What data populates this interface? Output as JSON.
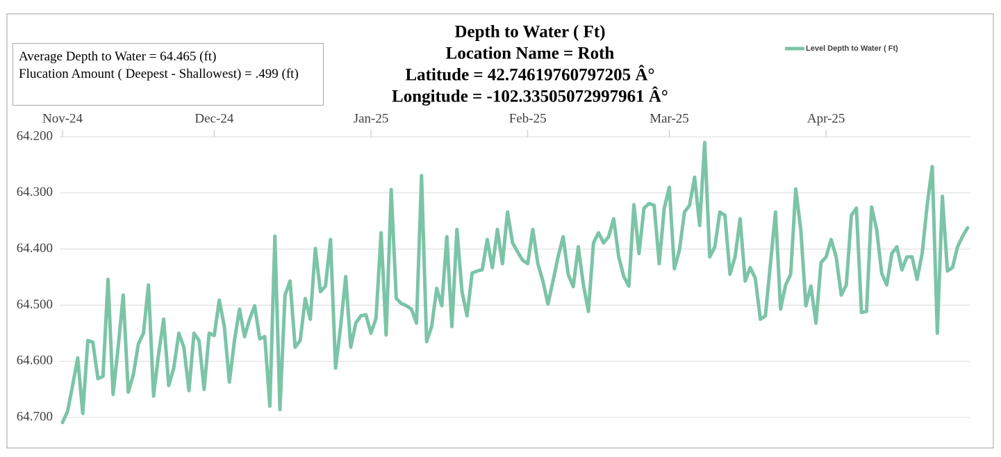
{
  "chart_data": {
    "type": "line",
    "title": [
      "Depth to Water ( Ft)",
      "Location Name = Roth",
      "Latitude = 42.74619760797205 Â°",
      "Longitude = -102.33505072997961 Â°"
    ],
    "annotations": [
      "Average Depth to Water = 64.465 (ft)",
      "Flucation Amount ( Deepest - Shallowest) = .499 (ft)"
    ],
    "categories": [
      "Nov-24",
      null,
      null,
      null,
      null,
      null,
      null,
      null,
      null,
      null,
      null,
      null,
      null,
      null,
      null,
      null,
      null,
      null,
      null,
      null,
      null,
      null,
      null,
      null,
      null,
      null,
      null,
      null,
      null,
      null,
      "Dec-24",
      null,
      null,
      null,
      null,
      null,
      null,
      null,
      null,
      null,
      null,
      null,
      null,
      null,
      null,
      null,
      null,
      null,
      null,
      null,
      null,
      null,
      null,
      null,
      null,
      null,
      null,
      null,
      null,
      null,
      null,
      "Jan-25",
      null,
      null,
      null,
      null,
      null,
      null,
      null,
      null,
      null,
      null,
      null,
      null,
      null,
      null,
      null,
      null,
      null,
      null,
      null,
      null,
      null,
      null,
      null,
      null,
      null,
      null,
      null,
      null,
      null,
      null,
      "Feb-25",
      null,
      null,
      null,
      null,
      null,
      null,
      null,
      null,
      null,
      null,
      null,
      null,
      null,
      null,
      null,
      null,
      null,
      null,
      null,
      null,
      null,
      null,
      null,
      null,
      null,
      null,
      null,
      "Mar-25",
      null,
      null,
      null,
      null,
      null,
      null,
      null,
      null,
      null,
      null,
      null,
      null,
      null,
      null,
      null,
      null,
      null,
      null,
      null,
      null,
      null,
      null,
      null,
      null,
      null,
      null,
      null,
      null,
      null,
      null,
      "Apr-25",
      null,
      null,
      null,
      null,
      null,
      null,
      null,
      null,
      null,
      null,
      null,
      null,
      null,
      null,
      null,
      null,
      null,
      null,
      null,
      null,
      null,
      null,
      null,
      null,
      null,
      null,
      null,
      null
    ],
    "series": [
      {
        "name": "Level Depth to Water ( Ft)",
        "color": "#7cc4a7",
        "values": [
          64.709,
          64.689,
          64.643,
          64.594,
          64.693,
          64.563,
          64.566,
          64.631,
          64.627,
          64.454,
          64.659,
          64.575,
          64.482,
          64.655,
          64.624,
          64.569,
          64.55,
          64.464,
          64.662,
          64.587,
          64.525,
          64.643,
          64.612,
          64.55,
          64.575,
          64.652,
          64.55,
          64.563,
          64.65,
          64.55,
          64.554,
          64.491,
          64.538,
          64.637,
          64.563,
          64.507,
          64.556,
          64.525,
          64.501,
          64.56,
          64.556,
          64.68,
          64.377,
          64.686,
          64.482,
          64.457,
          64.575,
          64.563,
          64.488,
          64.525,
          64.399,
          64.476,
          64.466,
          64.383,
          64.612,
          64.538,
          64.449,
          64.575,
          64.532,
          64.519,
          64.517,
          64.55,
          64.523,
          64.371,
          64.553,
          64.294,
          64.488,
          64.497,
          64.501,
          64.507,
          64.532,
          64.269,
          64.565,
          64.538,
          64.47,
          64.501,
          64.378,
          64.538,
          64.365,
          64.476,
          64.519,
          64.443,
          64.439,
          64.437,
          64.383,
          64.433,
          64.365,
          64.426,
          64.334,
          64.389,
          64.405,
          64.42,
          64.426,
          64.365,
          64.426,
          64.457,
          64.498,
          64.457,
          64.414,
          64.378,
          64.445,
          64.467,
          64.396,
          64.463,
          64.511,
          64.389,
          64.371,
          64.389,
          64.378,
          64.346,
          64.414,
          64.449,
          64.466,
          64.321,
          64.408,
          64.327,
          64.319,
          64.322,
          64.426,
          64.327,
          64.29,
          64.435,
          64.402,
          64.334,
          64.322,
          64.272,
          64.358,
          64.21,
          64.414,
          64.396,
          64.334,
          64.34,
          64.445,
          64.414,
          64.346,
          64.457,
          64.433,
          64.452,
          64.525,
          64.519,
          64.426,
          64.334,
          64.507,
          64.464,
          64.445,
          64.293,
          64.365,
          64.501,
          64.466,
          64.532,
          64.424,
          64.414,
          64.383,
          64.414,
          64.482,
          64.464,
          64.34,
          64.327,
          64.513,
          64.511,
          64.325,
          64.365,
          64.443,
          64.464,
          64.408,
          64.396,
          64.437,
          64.414,
          64.414,
          64.454,
          64.408,
          64.321,
          64.253,
          64.55,
          64.306,
          64.439,
          64.433,
          64.396,
          64.377,
          64.362
        ]
      }
    ],
    "ylim": [
      64.2,
      64.7
    ],
    "yticks": [
      {
        "value": 64.2,
        "label": "64.200"
      },
      {
        "value": 64.3,
        "label": "64.300"
      },
      {
        "value": 64.4,
        "label": "64.400"
      },
      {
        "value": 64.5,
        "label": "64.500"
      },
      {
        "value": 64.6,
        "label": "64.600"
      },
      {
        "value": 64.7,
        "label": "64.700"
      }
    ],
    "y_inverted": true,
    "x_axis_position": "top",
    "grid": true,
    "legend": "top-right"
  }
}
